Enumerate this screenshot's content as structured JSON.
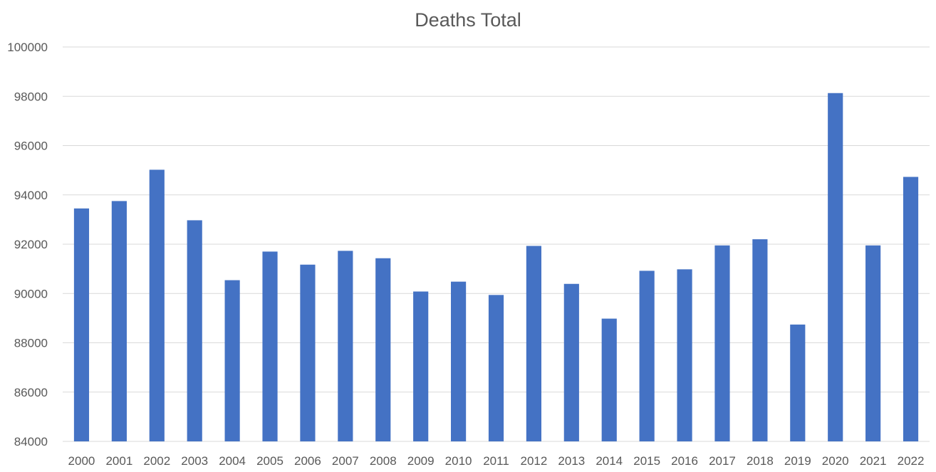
{
  "chart_data": {
    "type": "bar",
    "title": "Deaths Total",
    "xlabel": "",
    "ylabel": "",
    "categories": [
      "2000",
      "2001",
      "2002",
      "2003",
      "2004",
      "2005",
      "2006",
      "2007",
      "2008",
      "2009",
      "2010",
      "2011",
      "2012",
      "2013",
      "2014",
      "2015",
      "2016",
      "2017",
      "2018",
      "2019",
      "2020",
      "2021",
      "2022"
    ],
    "values": [
      93450,
      93750,
      95020,
      92970,
      90540,
      91700,
      91170,
      91730,
      91430,
      90080,
      90480,
      89940,
      91930,
      90390,
      88980,
      90920,
      90980,
      91950,
      92200,
      88740,
      98130,
      91950,
      94730
    ],
    "ylim": [
      84000,
      100000
    ],
    "yticks": [
      "84000",
      "86000",
      "88000",
      "90000",
      "92000",
      "94000",
      "96000",
      "98000",
      "100000"
    ],
    "grid": true,
    "legend": "none",
    "colors": {
      "bar": "#4472c4",
      "grid": "#d9d9d9",
      "text": "#595959"
    }
  }
}
